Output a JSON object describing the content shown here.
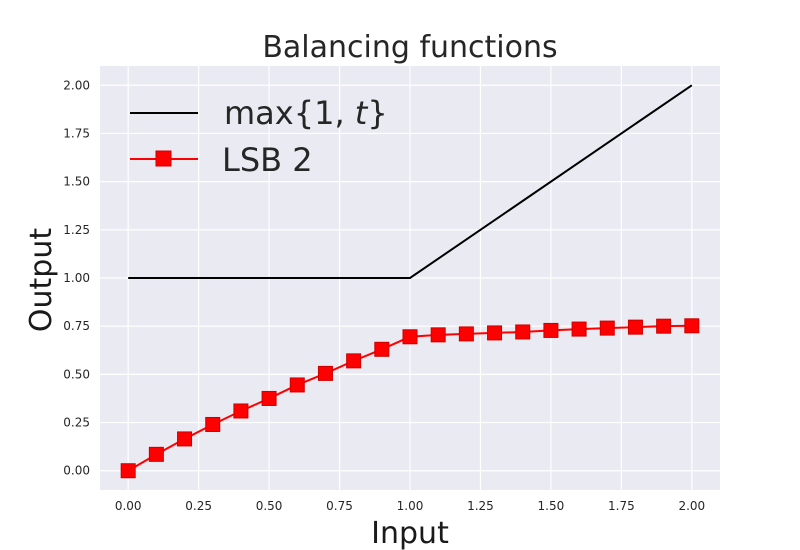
{
  "chart_data": {
    "type": "line",
    "title": "Balancing functions",
    "xlabel": "Input",
    "ylabel": "Output",
    "xlim": [
      -0.1,
      2.1
    ],
    "ylim": [
      -0.1,
      2.1
    ],
    "xticks": [
      0.0,
      0.25,
      0.5,
      0.75,
      1.0,
      1.25,
      1.5,
      1.75,
      2.0
    ],
    "xtick_labels": [
      "0.00",
      "0.25",
      "0.50",
      "0.75",
      "1.00",
      "1.25",
      "1.50",
      "1.75",
      "2.00"
    ],
    "yticks": [
      0.0,
      0.25,
      0.5,
      0.75,
      1.0,
      1.25,
      1.5,
      1.75,
      2.0
    ],
    "ytick_labels": [
      "0.00",
      "0.25",
      "0.50",
      "0.75",
      "1.00",
      "1.25",
      "1.50",
      "1.75",
      "2.00"
    ],
    "grid": true,
    "legend_position": "upper-left",
    "series": [
      {
        "name": "max{1, t}",
        "name_parts": {
          "func": "max{1, ",
          "var": "t",
          "close": "}"
        },
        "color": "#000000",
        "marker": "none",
        "x": [
          0.0,
          1.0,
          2.0
        ],
        "y": [
          1.0,
          1.0,
          2.0
        ]
      },
      {
        "name": "LSB 2",
        "color": "#ff0000",
        "marker": "square",
        "x": [
          0.0,
          0.1,
          0.2,
          0.3,
          0.4,
          0.5,
          0.6,
          0.7,
          0.8,
          0.9,
          1.0,
          1.1,
          1.2,
          1.3,
          1.4,
          1.5,
          1.6,
          1.7,
          1.8,
          1.9,
          2.0
        ],
        "y": [
          0.0,
          0.085,
          0.165,
          0.24,
          0.31,
          0.375,
          0.445,
          0.505,
          0.57,
          0.63,
          0.695,
          0.705,
          0.71,
          0.715,
          0.72,
          0.728,
          0.735,
          0.74,
          0.745,
          0.75,
          0.752
        ]
      }
    ],
    "background_color": "#eaeaf2",
    "grid_color": "#ffffff"
  }
}
